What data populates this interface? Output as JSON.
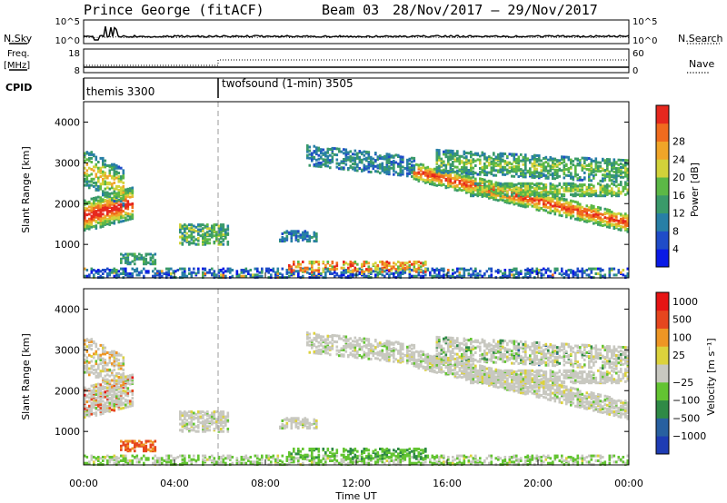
{
  "header": {
    "station": "Prince George (fitACF)",
    "beam": "Beam 03",
    "date_range": "28/Nov/2017 – 29/Nov/2017"
  },
  "left_labels": {
    "nsky": "N.Sky",
    "freq": "Freq.",
    "freq_unit": "[MHz]",
    "cpid": "CPID"
  },
  "right_labels": {
    "nsearch": "N.Search",
    "nave": "Nave"
  },
  "cpid_segments": [
    {
      "name": "themis 3300",
      "start_hour": 0
    },
    {
      "name": "twofsound (1-min) 3505",
      "start_hour": 6
    }
  ],
  "chart_data": [
    {
      "type": "line",
      "panel": "noise",
      "left_ticks": [
        "10^5",
        "10^0"
      ],
      "right_ticks": [
        "10^5",
        "10^0"
      ],
      "series": [
        {
          "name": "N.Sky",
          "style": "solid"
        },
        {
          "name": "N.Search",
          "style": "dotted"
        }
      ]
    },
    {
      "type": "line",
      "panel": "frequency",
      "left_ticks": [
        18,
        8
      ],
      "right_ticks": [
        60,
        0
      ],
      "series": [
        {
          "name": "Freq.",
          "style": "solid"
        },
        {
          "name": "Nave",
          "style": "dotted"
        }
      ]
    },
    {
      "type": "heatmap",
      "panel": "power",
      "ylabel": "Slant Range [km]",
      "xlim_hours": [
        0,
        24
      ],
      "ylim_km": [
        180,
        4500
      ],
      "yticks": [
        1000,
        2000,
        3000,
        4000
      ],
      "colorbar": {
        "label": "Power [dB]",
        "ticks": [
          4,
          8,
          12,
          16,
          20,
          24,
          28
        ],
        "colors": [
          "#0a1ae6",
          "#1f4cc8",
          "#287fa6",
          "#3a9a6a",
          "#5cb846",
          "#d2d23a",
          "#f0a528",
          "#f06b1e",
          "#e6281e"
        ]
      }
    },
    {
      "type": "heatmap",
      "panel": "velocity",
      "ylabel": "Slant Range [km]",
      "xlabel": "Time UT",
      "xlim_hours": [
        0,
        24
      ],
      "ylim_km": [
        180,
        4500
      ],
      "yticks": [
        1000,
        2000,
        3000,
        4000
      ],
      "xticks": [
        "00:00",
        "04:00",
        "08:00",
        "12:00",
        "16:00",
        "20:00",
        "00:00"
      ],
      "xtick_hours": [
        0,
        4,
        8,
        12,
        16,
        20,
        24
      ],
      "colorbar": {
        "label": "Velocity [m s⁻¹]",
        "ticks": [
          "1000",
          "500",
          "100",
          "25",
          "−25",
          "−100",
          "−500",
          "−1000"
        ],
        "colors": [
          "#1e3cb4",
          "#2860a0",
          "#2f8a46",
          "#63c432",
          "#c8c8c0",
          "#dcd23c",
          "#ee9624",
          "#e6461e",
          "#e61414"
        ]
      }
    }
  ]
}
